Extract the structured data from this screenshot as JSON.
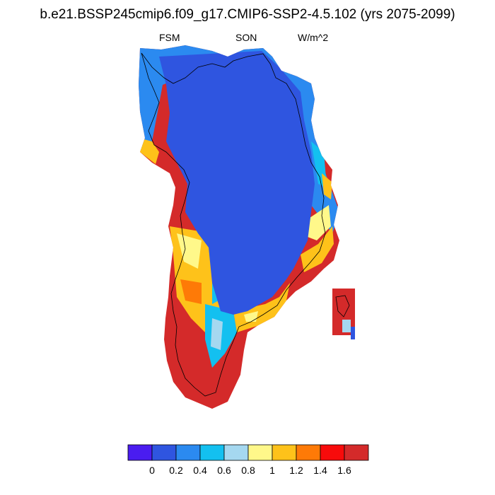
{
  "title": "b.e21.BSSP245cmip6.f09_g17.CMIP6-SSP2-4.5.102 (yrs 2075-2099)",
  "subtitle_left": "FSM",
  "subtitle_center": "SON",
  "subtitle_right": "W/m^2",
  "colorbar": {
    "colors": [
      "#4a1cf0",
      "#2f55e0",
      "#2b8af0",
      "#13c0f0",
      "#a5d8f0",
      "#fff88a",
      "#fec21a",
      "#fe7a07",
      "#f80b0b",
      "#d42a2a"
    ],
    "labels": [
      "0",
      "0.2",
      "0.4",
      "0.6",
      "0.8",
      "1",
      "1.2",
      "1.4",
      "1.6"
    ]
  }
}
